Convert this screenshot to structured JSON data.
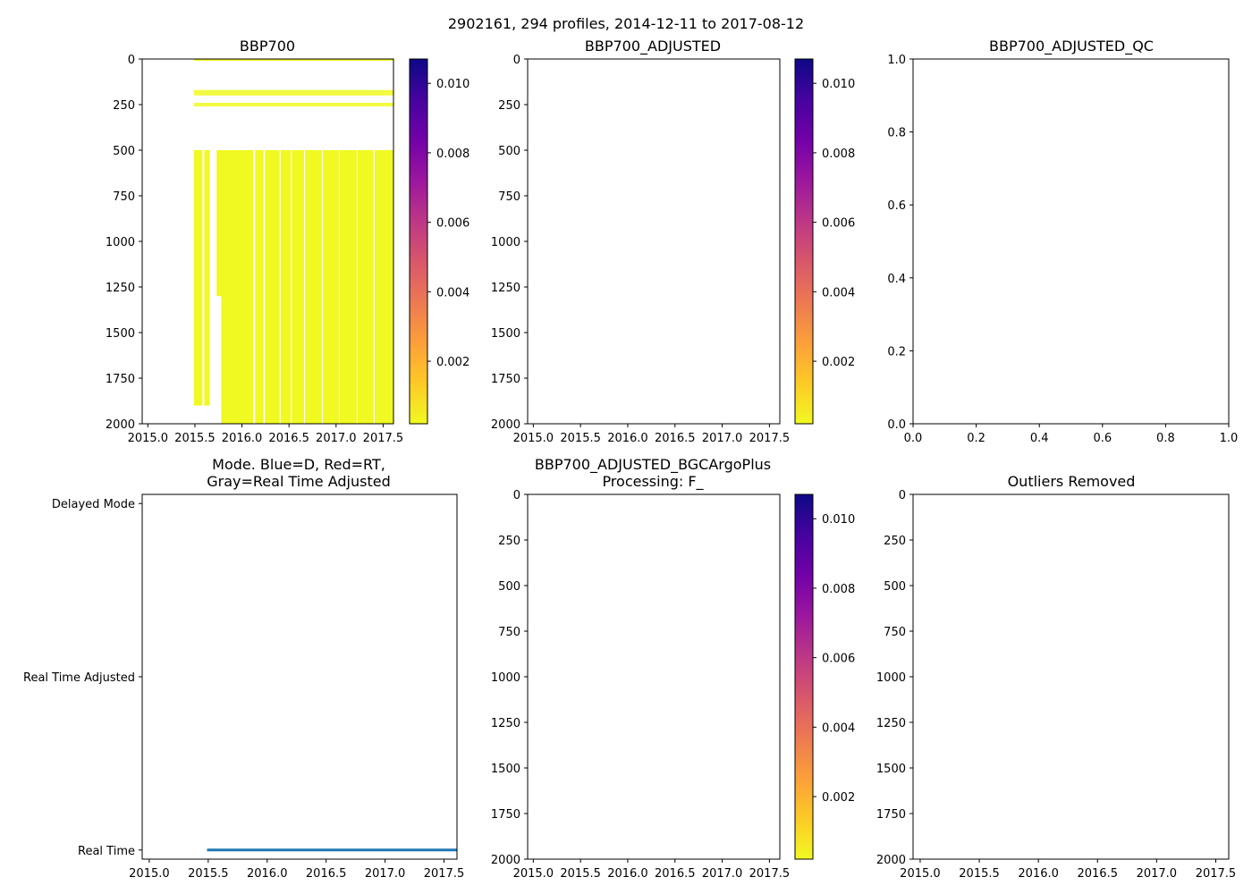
{
  "figure": {
    "suptitle": "2902161, 294 profiles, 2014-12-11 to 2017-08-12"
  },
  "colors": {
    "colormap": [
      "#f0f921",
      "#fdca26",
      "#fb9f3a",
      "#ed7953",
      "#d8576b",
      "#bd3786",
      "#9c179e",
      "#7201a8",
      "#46039f",
      "#0d0887"
    ],
    "data_fill": "#f0f921",
    "mode_line": "#1f77b4",
    "axis": "#000000"
  },
  "chart_data": [
    {
      "id": "bbp700",
      "type": "heatmap",
      "title": "BBP700",
      "xlim": [
        2014.94,
        2017.61
      ],
      "xticks": [
        2015.0,
        2015.5,
        2016.0,
        2016.5,
        2017.0,
        2017.5
      ],
      "xtick_labels": [
        "2015.0",
        "2015.5",
        "2016.0",
        "2016.5",
        "2017.0",
        "2017.5"
      ],
      "ylim": [
        2000,
        0
      ],
      "yticks": [
        0,
        250,
        500,
        750,
        1000,
        1250,
        1500,
        1750,
        2000
      ],
      "ytick_labels": [
        "0",
        "250",
        "500",
        "750",
        "1000",
        "1250",
        "1500",
        "1750",
        "2000"
      ],
      "colorbar": {
        "ticks": [
          0.002,
          0.004,
          0.006,
          0.008,
          0.01
        ],
        "tick_labels": [
          "0.002",
          "0.004",
          "0.006",
          "0.008",
          "0.010"
        ],
        "range": [
          0.0002,
          0.0107
        ]
      },
      "data_time_range": [
        2015.49,
        2017.61
      ],
      "blocks": [
        {
          "t0": 2015.49,
          "t1": 2015.66,
          "d0": 500,
          "d1": 1900
        },
        {
          "t0": 2015.73,
          "t1": 2015.86,
          "d0": 500,
          "d1": 1300
        },
        {
          "t0": 2015.78,
          "t1": 2017.61,
          "d0": 500,
          "d1": 2000
        }
      ],
      "shallow_bands": [
        {
          "d0": 170,
          "d1": 200
        },
        {
          "d0": 240,
          "d1": 260
        }
      ],
      "gaps": [
        {
          "t0": 2015.58,
          "t1": 2015.6
        },
        {
          "t0": 2015.66,
          "t1": 2015.73
        },
        {
          "t0": 2016.12,
          "t1": 2016.14
        },
        {
          "t0": 2016.23,
          "t1": 2016.245
        },
        {
          "t0": 2016.4,
          "t1": 2016.41
        },
        {
          "t0": 2016.52,
          "t1": 2016.53
        },
        {
          "t0": 2016.66,
          "t1": 2016.67
        },
        {
          "t0": 2016.85,
          "t1": 2016.86
        },
        {
          "t0": 2017.03,
          "t1": 2017.04
        },
        {
          "t0": 2017.22,
          "t1": 2017.23
        },
        {
          "t0": 2017.4,
          "t1": 2017.41
        }
      ]
    },
    {
      "id": "bbp700-adjusted",
      "type": "heatmap",
      "title": "BBP700_ADJUSTED",
      "xlim": [
        2014.94,
        2017.61
      ],
      "xticks": [
        2015.0,
        2015.5,
        2016.0,
        2016.5,
        2017.0,
        2017.5
      ],
      "xtick_labels": [
        "2015.0",
        "2015.5",
        "2016.0",
        "2016.5",
        "2017.0",
        "2017.5"
      ],
      "ylim": [
        2000,
        0
      ],
      "yticks": [
        0,
        250,
        500,
        750,
        1000,
        1250,
        1500,
        1750,
        2000
      ],
      "ytick_labels": [
        "0",
        "250",
        "500",
        "750",
        "1000",
        "1250",
        "1500",
        "1750",
        "2000"
      ],
      "colorbar": {
        "ticks": [
          0.002,
          0.004,
          0.006,
          0.008,
          0.01
        ],
        "tick_labels": [
          "0.002",
          "0.004",
          "0.006",
          "0.008",
          "0.010"
        ],
        "range": [
          0.0002,
          0.0107
        ]
      }
    },
    {
      "id": "bbp700-adjusted-qc",
      "type": "scatter",
      "title": "BBP700_ADJUSTED_QC",
      "xlim": [
        0,
        1
      ],
      "ylim": [
        0,
        1
      ],
      "xticks": [
        0.0,
        0.2,
        0.4,
        0.6,
        0.8,
        1.0
      ],
      "xtick_labels": [
        "0.0",
        "0.2",
        "0.4",
        "0.6",
        "0.8",
        "1.0"
      ],
      "yticks": [
        0.0,
        0.2,
        0.4,
        0.6,
        0.8,
        1.0
      ],
      "ytick_labels": [
        "0.0",
        "0.2",
        "0.4",
        "0.6",
        "0.8",
        "1.0"
      ]
    },
    {
      "id": "mode",
      "type": "line",
      "title_lines": [
        "Mode. Blue=D, Red=RT,",
        "Gray=Real Time Adjusted"
      ],
      "xlim": [
        2014.94,
        2017.61
      ],
      "xticks": [
        2015.0,
        2015.5,
        2016.0,
        2016.5,
        2017.0,
        2017.5
      ],
      "xtick_labels": [
        "2015.0",
        "2015.5",
        "2016.0",
        "2016.5",
        "2017.0",
        "2017.5"
      ],
      "ylim": [
        0,
        2
      ],
      "yticks": [
        2,
        1,
        0
      ],
      "ytick_labels": [
        "Delayed Mode",
        "Real Time Adjusted",
        "Real Time"
      ],
      "series": [
        {
          "name": "Real Time",
          "x": [
            2015.49,
            2017.61
          ],
          "y": [
            0,
            0
          ]
        }
      ]
    },
    {
      "id": "bgcargoplus",
      "type": "heatmap",
      "title_lines": [
        "BBP700_ADJUSTED_BGCArgoPlus",
        "Processing: F_"
      ],
      "xlim": [
        2014.94,
        2017.61
      ],
      "xticks": [
        2015.0,
        2015.5,
        2016.0,
        2016.5,
        2017.0,
        2017.5
      ],
      "xtick_labels": [
        "2015.0",
        "2015.5",
        "2016.0",
        "2016.5",
        "2017.0",
        "2017.5"
      ],
      "ylim": [
        2000,
        0
      ],
      "yticks": [
        0,
        250,
        500,
        750,
        1000,
        1250,
        1500,
        1750,
        2000
      ],
      "ytick_labels": [
        "0",
        "250",
        "500",
        "750",
        "1000",
        "1250",
        "1500",
        "1750",
        "2000"
      ],
      "colorbar": {
        "ticks": [
          0.002,
          0.004,
          0.006,
          0.008,
          0.01
        ],
        "tick_labels": [
          "0.002",
          "0.004",
          "0.006",
          "0.008",
          "0.010"
        ],
        "range": [
          0.0002,
          0.0107
        ]
      }
    },
    {
      "id": "outliers",
      "type": "heatmap",
      "title": "Outliers Removed",
      "xlim": [
        2014.94,
        2017.61
      ],
      "xticks": [
        2015.0,
        2015.5,
        2016.0,
        2016.5,
        2017.0,
        2017.5
      ],
      "xtick_labels": [
        "2015.0",
        "2015.5",
        "2016.0",
        "2016.5",
        "2017.0",
        "2017.5"
      ],
      "ylim": [
        2000,
        0
      ],
      "yticks": [
        0,
        250,
        500,
        750,
        1000,
        1250,
        1500,
        1750,
        2000
      ],
      "ytick_labels": [
        "0",
        "250",
        "500",
        "750",
        "1000",
        "1250",
        "1500",
        "1750",
        "2000"
      ]
    }
  ]
}
